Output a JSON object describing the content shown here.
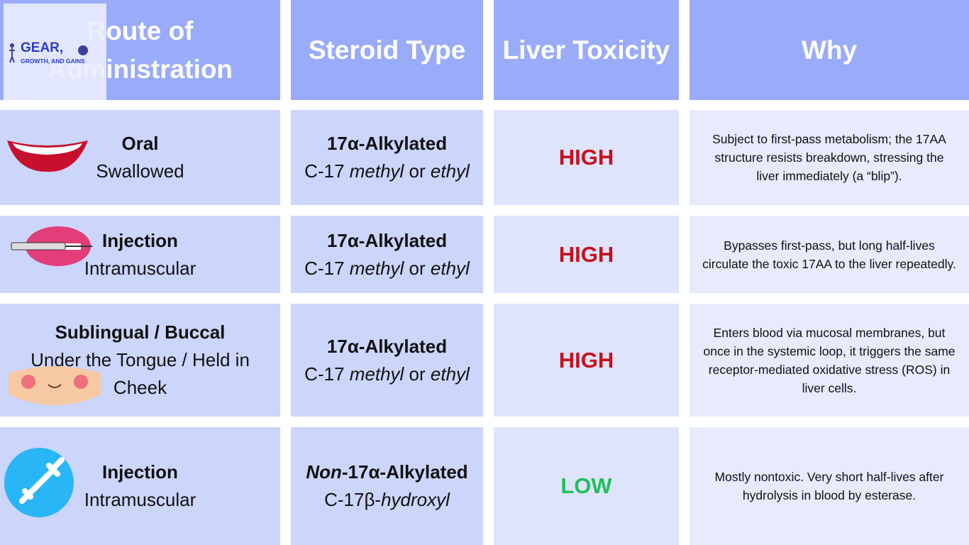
{
  "logo": {
    "name": "GEAR,",
    "tagline": "GROWTH, AND GAINS"
  },
  "header": [
    "Route of Administration",
    "Steroid Type",
    "Liver Toxicity",
    "Why"
  ],
  "rows": [
    {
      "route": {
        "title": "Oral",
        "subtitle": "Swallowed"
      },
      "steroid": {
        "title": [
          {
            "text": "17α-Alkylated"
          }
        ],
        "detail": [
          {
            "text": "C-17 "
          },
          {
            "text": "methyl",
            "em": true
          },
          {
            "text": " or "
          },
          {
            "text": "ethyl",
            "em": true
          }
        ]
      },
      "toxicity": {
        "text": "HIGH",
        "color": "#c8101e"
      },
      "why": "Subject to first-pass metabolism; the 17AA structure resists breakdown, stressing the liver immediately (a “blip”)."
    },
    {
      "route": {
        "title": "Injection",
        "subtitle": "Intramuscular"
      },
      "steroid": {
        "title": [
          {
            "text": "17α-Alkylated"
          }
        ],
        "detail": [
          {
            "text": "C-17 "
          },
          {
            "text": "methyl",
            "em": true
          },
          {
            "text": " or "
          },
          {
            "text": "ethyl",
            "em": true
          }
        ]
      },
      "toxicity": {
        "text": "HIGH",
        "color": "#c8101e"
      },
      "why": "Bypasses first-pass, but long half-lives circulate the toxic 17AA to the liver repeatedly."
    },
    {
      "route": {
        "title": "Sublingual / Buccal",
        "subtitle": "Under the Tongue / Held in Cheek"
      },
      "steroid": {
        "title": [
          {
            "text": "17α-Alkylated"
          }
        ],
        "detail": [
          {
            "text": "C-17 "
          },
          {
            "text": "methyl",
            "em": true
          },
          {
            "text": " or "
          },
          {
            "text": "ethyl",
            "em": true
          }
        ]
      },
      "toxicity": {
        "text": "HIGH",
        "color": "#c8101e"
      },
      "why": "Enters blood via mucosal membranes, but once in the systemic loop, it triggers the same receptor-mediated oxidative stress (ROS) in liver cells."
    },
    {
      "route": {
        "title": "Injection",
        "subtitle": "Intramuscular"
      },
      "steroid": {
        "title": [
          {
            "text": "Non",
            "em": true
          },
          {
            "text": "-17α-Alkylated"
          }
        ],
        "detail": [
          {
            "text": "C-17β-"
          },
          {
            "text": "hydroxyl",
            "em": true
          }
        ]
      },
      "toxicity": {
        "text": "LOW",
        "color": "#1fc15a"
      },
      "why": "Mostly nontoxic. Very short half-lives after hydrolysis in blood by esterase."
    }
  ]
}
